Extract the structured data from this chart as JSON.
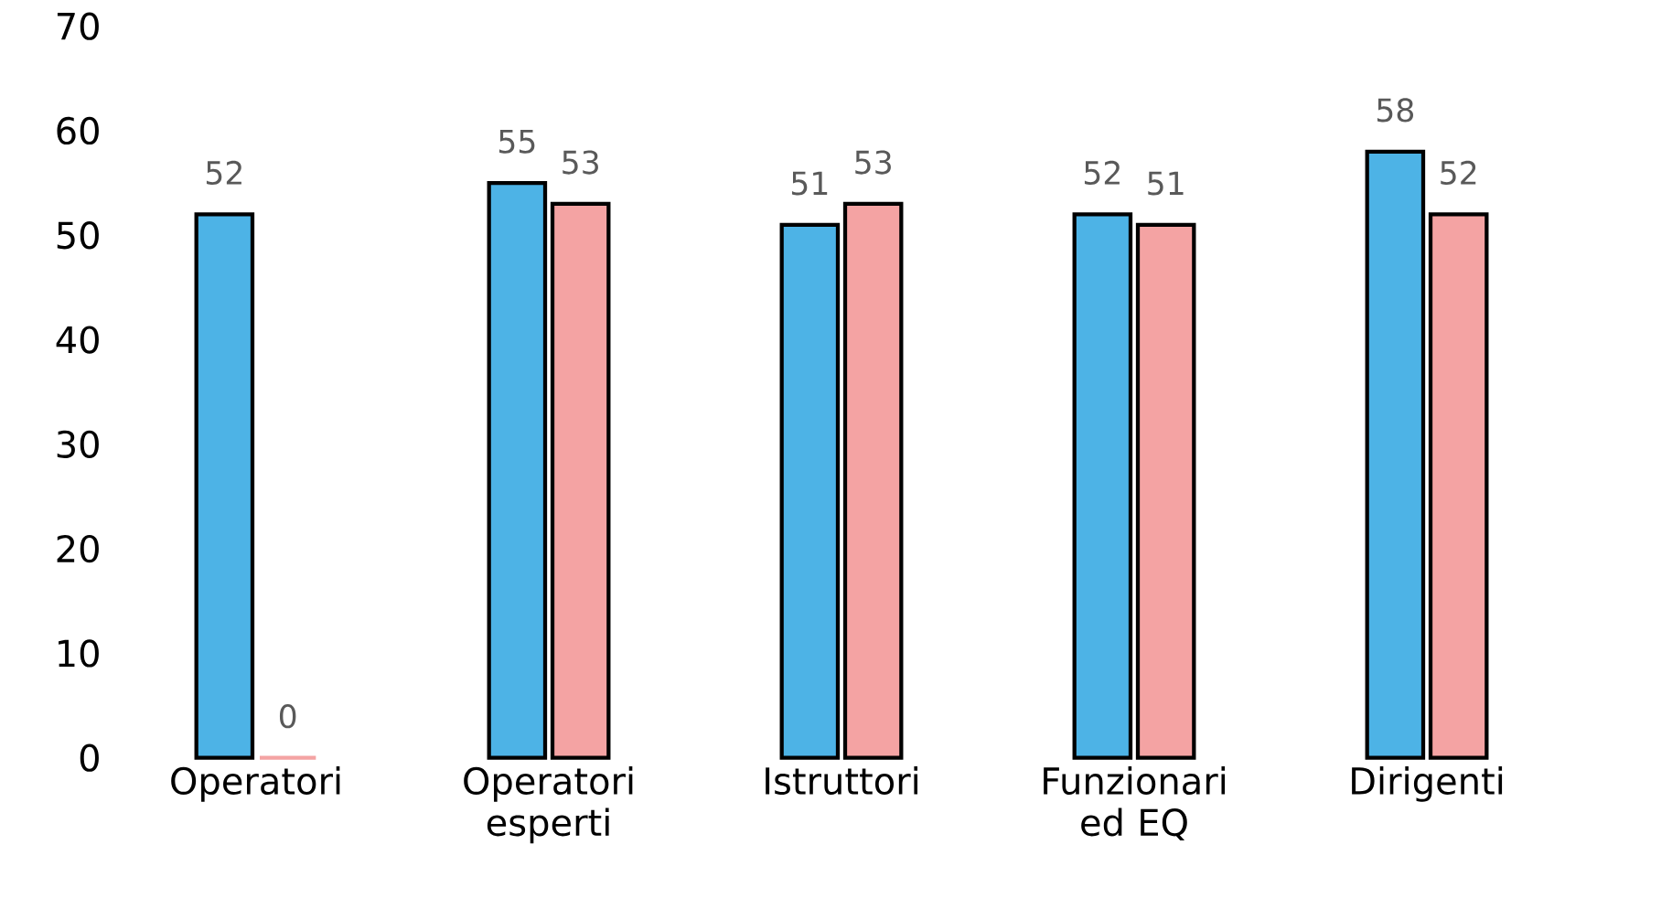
{
  "chart_data": {
    "type": "bar",
    "categories": [
      "Operatori",
      "Operatori esperti",
      "Istruttori",
      "Funzionari ed EQ",
      "Dirigenti"
    ],
    "series": [
      {
        "color": "#4db3e6",
        "values": [
          52,
          55,
          51,
          52,
          58
        ]
      },
      {
        "color": "#f4a3a3",
        "values": [
          0,
          53,
          53,
          51,
          52
        ]
      }
    ],
    "ylim": [
      0,
      70
    ],
    "yticks": [
      0,
      10,
      20,
      30,
      40,
      50,
      60,
      70
    ],
    "data_labels": true,
    "grid": false
  }
}
